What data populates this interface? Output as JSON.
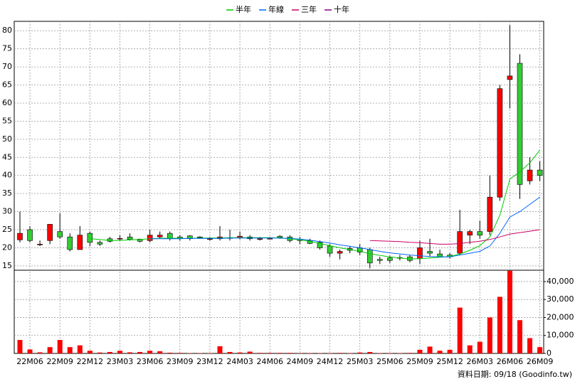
{
  "chart_data": {
    "type": "candlestick",
    "categories": [
      null,
      "22M06",
      null,
      null,
      "22M09",
      null,
      null,
      "22M12",
      null,
      null,
      "23M03",
      null,
      null,
      "23M06",
      null,
      null,
      "23M09",
      null,
      null,
      "23M12",
      null,
      null,
      "24M03",
      null,
      null,
      "24M06",
      null,
      null,
      "24M09",
      null,
      null,
      "24M12",
      null,
      null,
      "25M03",
      null,
      null,
      "25M06",
      null,
      null,
      "25M09",
      null,
      null,
      "25M12",
      null,
      null,
      "26M03",
      null,
      null,
      "26M06",
      null,
      null,
      "26M09"
    ],
    "open": [
      22.2,
      25,
      21,
      22,
      24.5,
      23,
      19.5,
      24,
      21.5,
      22.5,
      22.5,
      23,
      22.4,
      22,
      23,
      24,
      23,
      23.3,
      23,
      22.5,
      22.5,
      22.8,
      22.8,
      23,
      22.5,
      22.6,
      23.2,
      23,
      22.4,
      22,
      21.5,
      20.5,
      18.5,
      19.8,
      20,
      19.5,
      16.8,
      17.2,
      17.3,
      17.5,
      17,
      19,
      18.3,
      18,
      18.5,
      23.5,
      24.5,
      24.5,
      34,
      66.5,
      71,
      38.5,
      41.5
    ],
    "high": [
      30,
      26,
      22,
      26.5,
      29.5,
      24,
      26,
      24.5,
      22,
      23,
      23.5,
      24,
      22.5,
      25,
      24.5,
      24.5,
      23.5,
      23.5,
      23.2,
      23,
      26,
      25,
      24.5,
      23.5,
      23,
      23,
      23.5,
      23.5,
      23,
      22.5,
      22,
      21,
      19.5,
      20.5,
      21,
      20,
      17.5,
      17.8,
      18,
      18,
      22,
      22.5,
      19.5,
      18.5,
      30.5,
      25,
      27.5,
      40,
      65,
      81.5,
      73.5,
      45,
      44
    ],
    "low": [
      21.5,
      21.5,
      20.5,
      21,
      22.5,
      19,
      19.5,
      20.5,
      20.5,
      21.5,
      22,
      22,
      21.5,
      21.5,
      22.5,
      22,
      22,
      22,
      22.5,
      22,
      22,
      22,
      22.3,
      22,
      22,
      22.3,
      22.5,
      21.5,
      21,
      21,
      19.5,
      17.5,
      16.8,
      18.5,
      18,
      14.3,
      15.5,
      15.8,
      16.5,
      16,
      15.5,
      17.5,
      17.5,
      17,
      18,
      21,
      22.5,
      23.5,
      33,
      58.5,
      33.5,
      37.5,
      38.5
    ],
    "close": [
      24,
      22,
      21,
      26.5,
      23,
      19.5,
      23.5,
      21.5,
      21,
      21.8,
      22.6,
      22.3,
      21.8,
      23.5,
      23.5,
      22.5,
      22.5,
      22.5,
      22.8,
      22.5,
      23,
      22.8,
      23.2,
      22.5,
      22.5,
      22.6,
      22.8,
      22,
      22,
      21.2,
      20,
      18.5,
      19,
      19.3,
      18.8,
      15.8,
      16.5,
      16.5,
      17.3,
      16.5,
      20,
      18.5,
      17.5,
      17.5,
      24.5,
      24.5,
      23.5,
      34,
      64,
      67.5,
      37.5,
      41.5,
      40
    ],
    "up_color": "#ff0000",
    "down_color": "#33cc33",
    "volume": [
      7500,
      2200,
      600,
      3500,
      7500,
      3500,
      4500,
      1500,
      500,
      800,
      1500,
      600,
      800,
      1500,
      1200,
      400,
      300,
      200,
      200,
      200,
      4000,
      800,
      500,
      1000,
      300,
      300,
      300,
      300,
      200,
      200,
      200,
      200,
      300,
      200,
      500,
      800,
      200,
      200,
      200,
      300,
      2000,
      3800,
      1500,
      2000,
      25500,
      4500,
      6500,
      20000,
      31500,
      46000,
      18500,
      8500,
      3500
    ],
    "volume_color": "#ff0000",
    "series": [
      {
        "name": "半年",
        "color": "#00cc00",
        "values": [
          null,
          null,
          null,
          null,
          null,
          null,
          null,
          22.5,
          22.3,
          22.0,
          22.0,
          22.2,
          22.3,
          22.5,
          22.6,
          22.7,
          22.6,
          22.6,
          22.7,
          22.7,
          22.7,
          22.8,
          22.8,
          22.8,
          22.8,
          22.8,
          22.7,
          22.5,
          22.2,
          21.8,
          21.2,
          20.6,
          20.0,
          19.5,
          19.0,
          18.4,
          17.9,
          17.5,
          17.2,
          16.9,
          17.0,
          17.2,
          17.4,
          17.6,
          18.3,
          19.3,
          20.6,
          23.0,
          29.0,
          39.0,
          41.0,
          43.5,
          47.0
        ]
      },
      {
        "name": "年線",
        "color": "#0066ff",
        "values": [
          null,
          null,
          null,
          null,
          null,
          null,
          null,
          null,
          null,
          null,
          null,
          null,
          null,
          22.5,
          22.5,
          22.5,
          22.5,
          22.6,
          22.6,
          22.6,
          22.6,
          22.7,
          22.7,
          22.7,
          22.7,
          22.7,
          22.7,
          22.6,
          22.4,
          22.1,
          21.7,
          21.3,
          20.8,
          20.4,
          20.0,
          19.5,
          19.0,
          18.6,
          18.3,
          18.0,
          17.8,
          17.6,
          17.5,
          17.5,
          18.0,
          18.5,
          19.0,
          20.5,
          24.0,
          28.5,
          30.0,
          32.0,
          34.0
        ]
      },
      {
        "name": "三年",
        "color": "#cc0066",
        "values": [
          null,
          null,
          null,
          null,
          null,
          null,
          null,
          null,
          null,
          null,
          null,
          null,
          null,
          null,
          null,
          null,
          null,
          null,
          null,
          null,
          null,
          null,
          null,
          null,
          null,
          null,
          null,
          null,
          null,
          null,
          null,
          null,
          null,
          null,
          null,
          22.0,
          21.9,
          21.8,
          21.7,
          21.5,
          21.4,
          21.2,
          21.0,
          21.0,
          21.2,
          21.5,
          21.8,
          22.3,
          23.0,
          23.8,
          24.2,
          24.6,
          25.0
        ]
      },
      {
        "name": "十年",
        "color": "#800080",
        "values": [
          null,
          null,
          null,
          null,
          null,
          null,
          null,
          null,
          null,
          null,
          null,
          null,
          null,
          null,
          null,
          null,
          null,
          null,
          null,
          null,
          null,
          null,
          null,
          null,
          null,
          null,
          null,
          null,
          null,
          null,
          null,
          null,
          null,
          null,
          null,
          null,
          null,
          null,
          null,
          null,
          null,
          null,
          null,
          null,
          null,
          null,
          null,
          null,
          null,
          null,
          null,
          null,
          null
        ]
      }
    ],
    "ylim": [
      13.8,
      82.6
    ],
    "yticks": [
      15,
      20,
      25,
      30,
      35,
      40,
      45,
      50,
      55,
      60,
      65,
      70,
      75,
      80
    ],
    "y2lim": [
      0,
      46300
    ],
    "y2ticks": [
      0,
      {
        "value": 10000,
        "label": "10,000"
      },
      {
        "value": 20000,
        "label": "20,000"
      },
      {
        "value": 30000,
        "label": "30,000"
      },
      {
        "value": 40000,
        "label": "40,000"
      }
    ],
    "grid": true,
    "footer": "資料日期: 09/18 (Goodinfo.tw)"
  }
}
